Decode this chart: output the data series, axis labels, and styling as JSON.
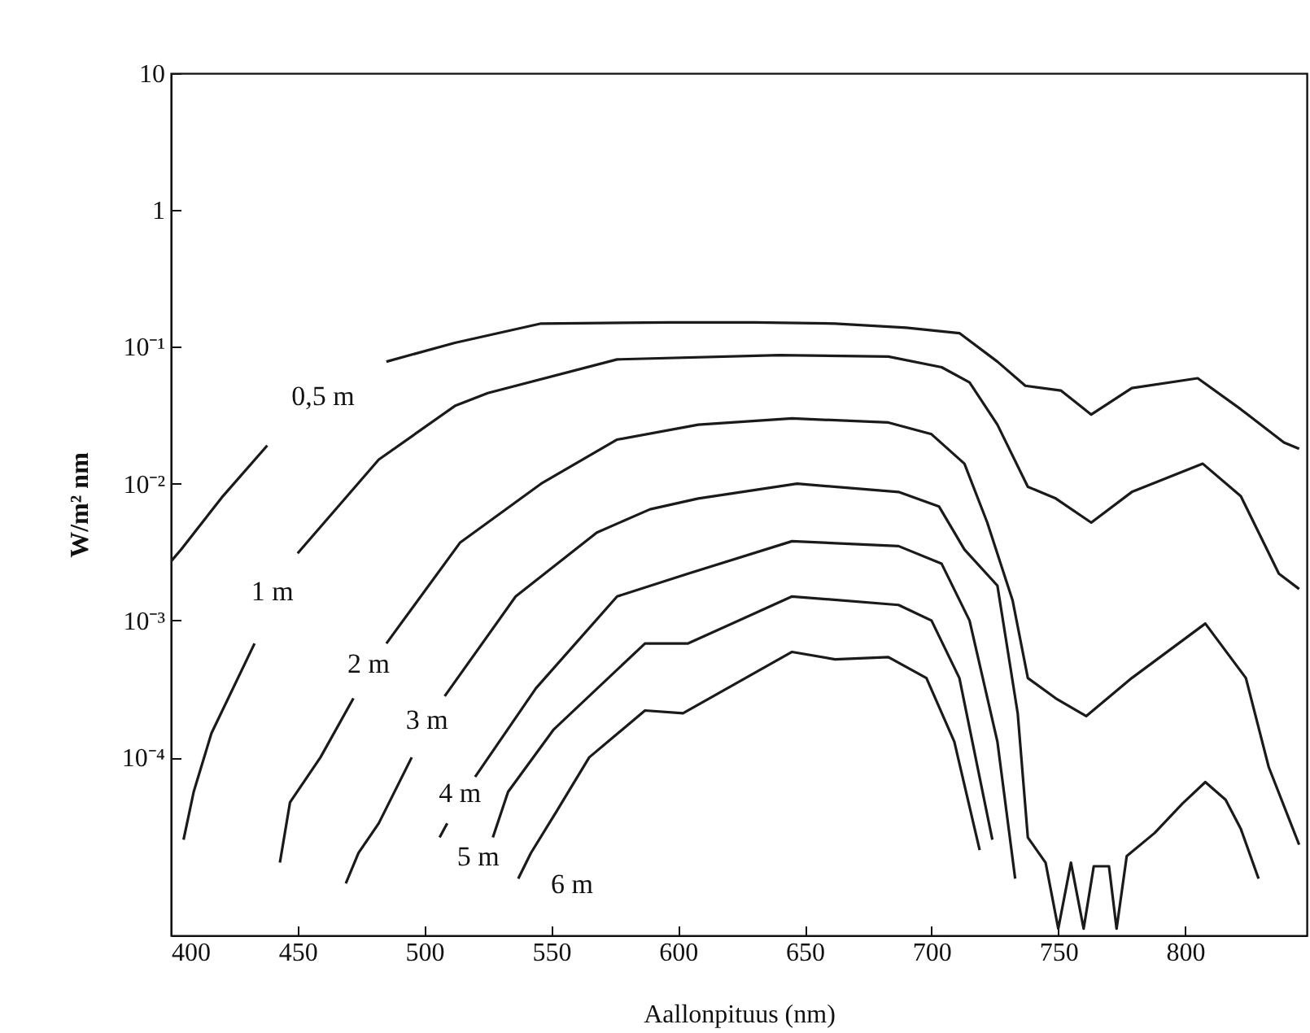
{
  "chart_data": {
    "type": "line",
    "xlabel": "Aallonpituus (nm)",
    "ylabel": "W/m² nm",
    "log": "y",
    "grid": false,
    "marker": "none",
    "line_style": "solid",
    "xlim": [
      400,
      848
    ],
    "xticks": [
      400,
      450,
      500,
      550,
      600,
      650,
      700,
      750,
      800
    ],
    "ylim": [
      5e-06,
      10
    ],
    "yticks": [
      {
        "value": 0.0001,
        "label": "10⁻⁴"
      },
      {
        "value": 0.001,
        "label": "10⁻³"
      },
      {
        "value": 0.01,
        "label": "10⁻²"
      },
      {
        "value": 0.1,
        "label": "10⁻¹"
      },
      1,
      10
    ],
    "series": [
      {
        "name": "0,5 m",
        "color": "#1a1a1a",
        "x": [
          400,
          404,
          420,
          438,
          460,
          485,
          512,
          546,
          597,
          630,
          662,
          690,
          711,
          726,
          737,
          751,
          763,
          779,
          805,
          822,
          839,
          845
        ],
        "values": [
          0.0027,
          0.0033,
          0.0079,
          0.019,
          null,
          0.078,
          0.107,
          0.148,
          0.151,
          0.151,
          0.148,
          0.138,
          0.126,
          0.078,
          0.052,
          0.048,
          0.032,
          0.05,
          0.059,
          0.035,
          0.02,
          0.018
        ]
      },
      {
        "name": "1 m",
        "color": "#1a1a1a",
        "x": [
          405,
          409,
          416,
          433,
          440,
          450,
          482,
          512,
          525,
          576,
          640,
          683,
          704,
          715,
          726,
          738,
          749,
          763,
          779,
          807,
          822,
          837,
          845
        ],
        "values": [
          2.5e-05,
          5.6e-05,
          0.00015,
          0.00068,
          null,
          0.0031,
          0.015,
          0.037,
          0.046,
          0.081,
          0.087,
          0.085,
          0.071,
          0.055,
          0.027,
          0.0095,
          0.0078,
          0.0052,
          0.0087,
          0.014,
          0.0081,
          0.0022,
          0.0017
        ]
      },
      {
        "name": "2 m",
        "color": "#1a1a1a",
        "x": [
          443,
          447,
          459,
          472,
          478,
          485,
          514,
          546,
          576,
          608,
          645,
          683,
          700,
          713,
          722,
          732,
          738,
          749,
          761,
          779,
          808,
          824,
          833,
          845
        ],
        "values": [
          1.7e-05,
          4.7e-05,
          0.0001,
          0.00027,
          null,
          0.00068,
          0.0037,
          0.01,
          0.021,
          0.027,
          0.03,
          0.028,
          0.023,
          0.014,
          0.0052,
          0.0014,
          0.00038,
          0.00027,
          0.0002,
          0.00038,
          0.00095,
          0.00038,
          8.5e-05,
          2.3e-05
        ]
      },
      {
        "name": "3 m",
        "color": "#1a1a1a",
        "x": [
          469,
          474,
          482,
          495,
          501,
          508,
          536,
          568,
          589,
          608,
          647,
          687,
          703,
          713,
          726,
          734,
          738,
          745,
          750,
          755,
          760,
          764,
          770,
          773,
          777,
          788,
          799,
          808,
          816,
          822,
          829
        ],
        "values": [
          1.2e-05,
          2e-05,
          3.3e-05,
          0.0001,
          null,
          0.00028,
          0.0015,
          0.0044,
          0.0065,
          0.0078,
          0.01,
          0.0087,
          0.0068,
          0.0033,
          0.0018,
          0.00021,
          2.6e-05,
          1.7e-05,
          5.6e-06,
          1.7e-05,
          5.6e-06,
          1.6e-05,
          1.6e-05,
          5.6e-06,
          1.9e-05,
          2.8e-05,
          4.6e-05,
          6.6e-05,
          4.9e-05,
          3e-05,
          1.3e-05
        ]
      },
      {
        "name": "4 m",
        "color": "#1a1a1a",
        "x": [
          506,
          509,
          514,
          520,
          544,
          576,
          604,
          645,
          687,
          704,
          715,
          726,
          733
        ],
        "values": [
          2.6e-05,
          3.3e-05,
          null,
          7.2e-05,
          0.00032,
          0.0015,
          0.0022,
          0.0038,
          0.0035,
          0.0026,
          0.001,
          0.00013,
          1.3e-05
        ]
      },
      {
        "name": "5 m",
        "color": "#1a1a1a",
        "x": [
          527,
          533,
          551,
          587,
          604,
          645,
          687,
          700,
          711,
          724
        ],
        "values": [
          2.6e-05,
          5.6e-05,
          0.00016,
          0.00068,
          0.00068,
          0.0015,
          0.0013,
          0.001,
          0.00038,
          2.5e-05
        ]
      },
      {
        "name": "6 m",
        "color": "#1a1a1a",
        "x": [
          537,
          542,
          552,
          565,
          587,
          602,
          645,
          662,
          683,
          698,
          709,
          719
        ],
        "values": [
          1.3e-05,
          2e-05,
          4e-05,
          0.0001,
          0.00022,
          0.00021,
          0.00059,
          0.00052,
          0.00054,
          0.00038,
          0.00013,
          2.1e-05
        ]
      }
    ]
  }
}
